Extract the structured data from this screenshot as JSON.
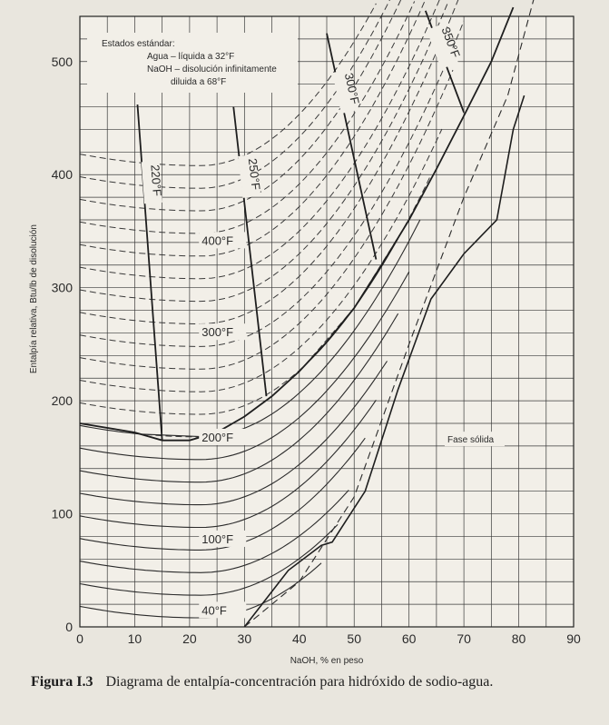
{
  "chart_data": {
    "type": "line",
    "xlabel": "NaOH, % en peso",
    "ylabel": "Entalpía relativa, Btu/lb de disolución",
    "xlim": [
      0,
      90
    ],
    "ylim": [
      0,
      540
    ],
    "x_ticks": [
      "0",
      "10",
      "20",
      "30",
      "40",
      "50",
      "60",
      "70",
      "80",
      "90"
    ],
    "y_ticks": [
      "0",
      "100",
      "200",
      "300",
      "400",
      "500"
    ],
    "grid": true,
    "standard_states": {
      "title": "Estados estándar:",
      "line1": "Agua – líquida a 32°F",
      "line2": "NaOH – disolución infinitamente",
      "line3": "diluida a 68°F"
    },
    "solid_phase_label": "Fase sólida",
    "isotherm_labels": [
      "40°F",
      "100°F",
      "200°F",
      "300°F",
      "400°F"
    ],
    "isotherms": [
      {
        "t": 40,
        "a": 8,
        "b": 0.55,
        "x0": 22,
        "k": 0.1,
        "xmax": 44
      },
      {
        "t": 60,
        "a": 28,
        "b": 0.55,
        "x0": 22,
        "k": 0.1,
        "xmax": 47
      },
      {
        "t": 80,
        "a": 48,
        "b": 0.55,
        "x0": 22,
        "k": 0.1,
        "xmax": 49
      },
      {
        "t": 100,
        "a": 68,
        "b": 0.55,
        "x0": 22,
        "k": 0.11,
        "xmax": 52
      },
      {
        "t": 120,
        "a": 88,
        "b": 0.55,
        "x0": 22,
        "k": 0.11,
        "xmax": 54
      },
      {
        "t": 140,
        "a": 108,
        "b": 0.55,
        "x0": 22,
        "k": 0.11,
        "xmax": 56
      },
      {
        "t": 160,
        "a": 128,
        "b": 0.55,
        "x0": 22,
        "k": 0.115,
        "xmax": 58
      },
      {
        "t": 180,
        "a": 148,
        "b": 0.55,
        "x0": 22,
        "k": 0.115,
        "xmax": 60
      },
      {
        "t": 200,
        "a": 168,
        "b": 0.55,
        "x0": 22,
        "k": 0.12,
        "xmax": 62
      },
      {
        "t": 220,
        "a": 188,
        "b": 0.55,
        "x0": 22,
        "k": 0.12,
        "xmax": 64
      },
      {
        "t": 240,
        "a": 208,
        "b": 0.55,
        "x0": 22,
        "k": 0.12,
        "xmax": 66
      },
      {
        "t": 260,
        "a": 228,
        "b": 0.55,
        "x0": 22,
        "k": 0.125,
        "xmax": 68
      },
      {
        "t": 280,
        "a": 248,
        "b": 0.55,
        "x0": 22,
        "k": 0.125,
        "xmax": 70
      },
      {
        "t": 300,
        "a": 268,
        "b": 0.55,
        "x0": 22,
        "k": 0.13,
        "xmax": 72
      },
      {
        "t": 320,
        "a": 288,
        "b": 0.55,
        "x0": 22,
        "k": 0.13,
        "xmax": 74
      },
      {
        "t": 340,
        "a": 308,
        "b": 0.55,
        "x0": 22,
        "k": 0.13,
        "xmax": 76
      },
      {
        "t": 360,
        "a": 328,
        "b": 0.55,
        "x0": 22,
        "k": 0.135,
        "xmax": 78
      },
      {
        "t": 380,
        "a": 348,
        "b": 0.55,
        "x0": 22,
        "k": 0.135,
        "xmax": 79
      },
      {
        "t": 400,
        "a": 368,
        "b": 0.55,
        "x0": 22,
        "k": 0.14,
        "xmax": 80
      },
      {
        "t": 420,
        "a": 388,
        "b": 0.55,
        "x0": 22,
        "k": 0.14,
        "xmax": 81
      },
      {
        "t": 440,
        "a": 408,
        "b": 0.55,
        "x0": 22,
        "k": 0.14,
        "xmax": 82
      }
    ],
    "boiling_curve": [
      [
        0,
        180
      ],
      [
        10,
        172
      ],
      [
        15,
        165
      ],
      [
        20,
        165
      ],
      [
        25,
        172
      ],
      [
        30,
        186
      ],
      [
        35,
        204
      ],
      [
        40,
        226
      ],
      [
        45,
        252
      ],
      [
        50,
        282
      ],
      [
        55,
        320
      ],
      [
        60,
        360
      ],
      [
        65,
        405
      ],
      [
        70,
        452
      ],
      [
        75,
        500
      ],
      [
        79,
        548
      ]
    ],
    "solid_boundary": [
      [
        30,
        0
      ],
      [
        38,
        50
      ],
      [
        44,
        72
      ],
      [
        46,
        75
      ],
      [
        52,
        120
      ],
      [
        58,
        210
      ],
      [
        64,
        290
      ],
      [
        70,
        330
      ],
      [
        73,
        345
      ],
      [
        76,
        360
      ],
      [
        79,
        440
      ],
      [
        81,
        470
      ]
    ],
    "solid_boundary_dashed": [
      [
        30,
        0
      ],
      [
        40,
        40
      ],
      [
        50,
        115
      ],
      [
        60,
        250
      ],
      [
        70,
        380
      ],
      [
        78,
        470
      ],
      [
        83,
        560
      ]
    ],
    "boiling_point_lines": [
      {
        "label": "220°F",
        "points": [
          [
            10.5,
            462
          ],
          [
            15,
            165
          ]
        ]
      },
      {
        "label": "250°F",
        "points": [
          [
            28,
            460
          ],
          [
            34,
            204
          ]
        ]
      },
      {
        "label": "300°F",
        "points": [
          [
            45,
            525
          ],
          [
            54,
            325
          ]
        ]
      },
      {
        "label": "350°F",
        "points": [
          [
            63,
            545
          ],
          [
            70,
            455
          ]
        ]
      }
    ]
  },
  "caption": {
    "figure": "Figura I.3",
    "text": "Diagrama de entalpía-concentración para hidróxido de sodio-agua."
  }
}
